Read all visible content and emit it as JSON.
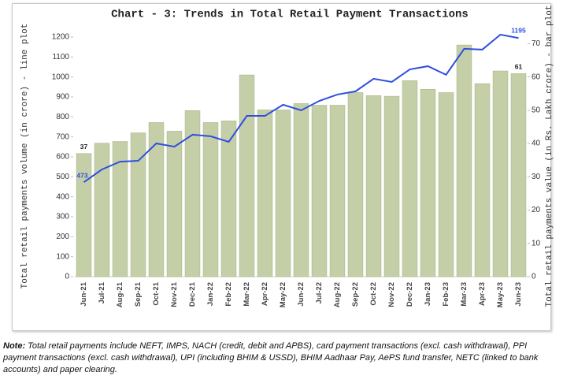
{
  "chart_data": {
    "type": "combo",
    "title": "Chart - 3: Trends in Total Retail Payment Transactions",
    "y_label": "Total retail payments volume (in crore) - line plot",
    "y2_label": "Total retail payments value (in Rs. Lakh crore) - bar plot",
    "categories": [
      "Jun-21",
      "Jul-21",
      "Aug-21",
      "Sep-21",
      "Oct-21",
      "Nov-21",
      "Dec-21",
      "Jan-22",
      "Feb-22",
      "Mar-22",
      "Apr-22",
      "May-22",
      "Jun-22",
      "Jul-22",
      "Aug-22",
      "Sep-22",
      "Oct-22",
      "Nov-22",
      "Dec-22",
      "Jan-23",
      "Feb-23",
      "Mar-23",
      "Apr-23",
      "May-23",
      "Jun-23"
    ],
    "series": [
      {
        "type": "bar",
        "axis": "y2",
        "color": "#c5cfa7",
        "values": [
          37,
          40.1,
          40.6,
          43.2,
          46.3,
          43.7,
          49.9,
          46.3,
          46.8,
          60.6,
          50.1,
          50.1,
          52,
          51.5,
          51.5,
          55.3,
          54.4,
          54.2,
          58.9,
          56.3,
          55.3,
          69.6,
          58,
          61.8,
          61
        ],
        "value_labels": [
          "37",
          null,
          null,
          null,
          null,
          null,
          null,
          null,
          null,
          null,
          null,
          null,
          null,
          null,
          null,
          null,
          null,
          null,
          null,
          null,
          null,
          null,
          null,
          null,
          "61"
        ]
      },
      {
        "type": "line",
        "color": "#2f4ee0",
        "values": [
          473,
          537,
          576,
          580,
          667,
          651,
          711,
          703,
          675,
          805,
          805,
          861,
          833,
          880,
          912,
          928,
          991,
          975,
          1038,
          1054,
          1011,
          1141,
          1137,
          1212,
          1195
        ],
        "value_labels": [
          "473",
          null,
          null,
          null,
          null,
          null,
          null,
          null,
          null,
          null,
          null,
          null,
          null,
          null,
          null,
          null,
          null,
          null,
          null,
          null,
          null,
          null,
          null,
          null,
          "1195"
        ]
      }
    ],
    "ylim": [
      0,
      1250
    ],
    "yticks": [
      0,
      100,
      200,
      300,
      400,
      500,
      600,
      700,
      800,
      900,
      1000,
      1100,
      1200
    ],
    "y2lim": [
      0,
      75
    ],
    "y2ticks": [
      0,
      10,
      20,
      30,
      40,
      50,
      60,
      70
    ],
    "grid": false
  },
  "note_label": "Note:",
  "note": "Total retail payments include NEFT, IMPS, NACH (credit, debit and APBS), card payment transactions (excl. cash withdrawal), PPI payment transactions (excl. cash withdrawal), UPI (including BHIM & USSD), BHIM Aadhaar Pay, AePS fund transfer, NETC (linked to bank accounts) and paper clearing."
}
